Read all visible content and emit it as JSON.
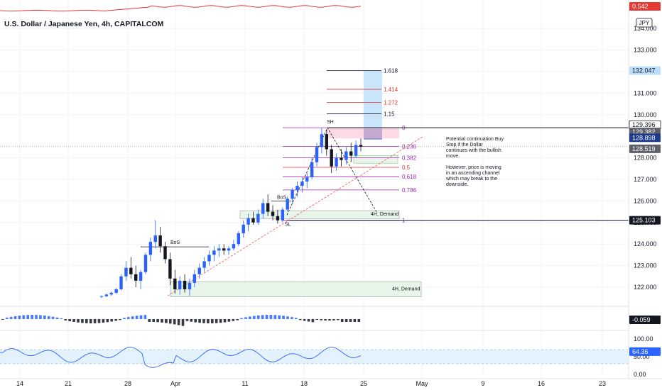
{
  "header": {
    "title": "U.S. Dollar / Japanese Yen, 4h, CAPITALCOM",
    "currency_badge": "JPY"
  },
  "annotation_note": {
    "para1": "Potential continuation Buy Stop  if the Dollar continues with the bullish move.",
    "para2": "However, price is moving in an ascending channel which may break to the downside."
  },
  "chart_data": {
    "type": "candlestick",
    "symbol": "U.S. Dollar / Japanese Yen",
    "timeframe": "4h",
    "source": "CAPITALCOM",
    "y_ticks": [
      122.0,
      123.0,
      124.0,
      125.0,
      126.0,
      127.0,
      128.0,
      130.0,
      131.0,
      132.0,
      133.0,
      134.0
    ],
    "y_tick_labels": [
      "122.000",
      "123.000",
      "124.000",
      "125.000",
      "126.000",
      "127.000",
      "128.000",
      "130.000",
      "131.000",
      "132.000",
      "133.000",
      "134.000"
    ],
    "ylim": [
      121.5,
      134.4
    ],
    "x_ticks": [
      "14",
      "21",
      "28",
      "Apr",
      "11",
      "18",
      "25",
      "May",
      "9",
      "16",
      "23"
    ],
    "candles": [
      [
        121.55,
        121.62,
        121.5,
        121.58
      ],
      [
        121.58,
        121.7,
        121.54,
        121.66
      ],
      [
        121.66,
        121.8,
        121.6,
        121.74
      ],
      [
        121.74,
        121.96,
        121.7,
        121.9
      ],
      [
        121.9,
        122.6,
        121.85,
        122.5
      ],
      [
        122.5,
        123.2,
        122.3,
        122.9
      ],
      [
        122.9,
        123.4,
        122.4,
        122.6
      ],
      [
        122.6,
        123.0,
        122.0,
        122.3
      ],
      [
        122.3,
        122.8,
        121.9,
        122.7
      ],
      [
        122.7,
        123.6,
        122.6,
        123.5
      ],
      [
        123.5,
        124.3,
        123.2,
        124.1
      ],
      [
        124.1,
        125.1,
        123.8,
        124.4
      ],
      [
        124.4,
        124.8,
        123.6,
        123.9
      ],
      [
        123.9,
        124.1,
        123.1,
        123.3
      ],
      [
        123.3,
        123.6,
        122.1,
        122.4
      ],
      [
        122.4,
        122.8,
        121.7,
        121.9
      ],
      [
        121.9,
        122.5,
        121.65,
        122.3
      ],
      [
        122.3,
        122.6,
        121.75,
        121.9
      ],
      [
        121.9,
        122.4,
        121.6,
        122.2
      ],
      [
        122.2,
        122.8,
        122.0,
        122.6
      ],
      [
        122.6,
        123.1,
        122.4,
        122.9
      ],
      [
        122.9,
        123.4,
        122.7,
        123.2
      ],
      [
        123.2,
        123.7,
        123.0,
        123.5
      ],
      [
        123.5,
        123.9,
        123.2,
        123.7
      ],
      [
        123.7,
        124.0,
        123.4,
        123.8
      ],
      [
        123.8,
        124.0,
        123.5,
        123.7
      ],
      [
        123.7,
        123.9,
        123.5,
        123.8
      ],
      [
        123.8,
        124.2,
        123.7,
        124.0
      ],
      [
        124.0,
        124.6,
        123.9,
        124.5
      ],
      [
        124.5,
        125.1,
        124.3,
        124.9
      ],
      [
        124.9,
        125.4,
        124.6,
        125.2
      ],
      [
        125.2,
        125.5,
        124.9,
        125.0
      ],
      [
        125.0,
        125.6,
        124.9,
        125.4
      ],
      [
        125.4,
        126.1,
        125.2,
        125.9
      ],
      [
        125.9,
        126.3,
        125.3,
        125.5
      ],
      [
        125.5,
        125.8,
        125.1,
        125.3
      ],
      [
        125.3,
        125.6,
        124.95,
        125.1
      ],
      [
        125.1,
        125.7,
        125.0,
        125.6
      ],
      [
        125.6,
        126.2,
        125.5,
        126.1
      ],
      [
        126.1,
        126.6,
        125.9,
        126.5
      ],
      [
        126.5,
        126.9,
        126.2,
        126.7
      ],
      [
        126.7,
        127.1,
        126.4,
        126.9
      ],
      [
        126.9,
        127.3,
        126.6,
        127.1
      ],
      [
        127.1,
        128.0,
        127.0,
        127.8
      ],
      [
        127.8,
        128.7,
        127.6,
        128.5
      ],
      [
        128.5,
        129.4,
        128.2,
        129.1
      ],
      [
        129.1,
        129.3,
        128.1,
        128.4
      ],
      [
        128.4,
        128.6,
        127.3,
        127.6
      ],
      [
        127.6,
        128.2,
        127.4,
        128.0
      ],
      [
        128.0,
        128.4,
        127.6,
        127.9
      ],
      [
        127.9,
        128.5,
        127.7,
        128.3
      ],
      [
        128.3,
        128.7,
        127.8,
        128.1
      ],
      [
        128.1,
        128.8,
        128.0,
        128.6
      ],
      [
        128.6,
        128.9,
        128.3,
        128.52
      ]
    ],
    "fibonacci": {
      "levels": [
        "0",
        "0.236",
        "0.382",
        "0.5",
        "0.618",
        "0.786",
        "1",
        "1.15",
        "1.272",
        "1.414",
        "1.618"
      ],
      "prices": [
        129.396,
        128.53,
        128.0,
        127.56,
        127.13,
        126.51,
        125.103,
        130.04,
        130.57,
        131.18,
        132.05
      ]
    },
    "horizontal_lines": [
      129.396,
      125.103
    ],
    "annotations": [
      "SH",
      "SL",
      "BoS",
      "BoS",
      "4H, Demand",
      "4H, Demand"
    ],
    "price_labels": {
      "top_indicator": "0.542",
      "target": "132.047",
      "resistance": "129.396",
      "level_1": "129.382",
      "level_2": "128.898",
      "current": "128.519",
      "support": "125.103",
      "macd": "-0.059",
      "rsi": "64.36"
    },
    "rsi_panel": {
      "ticks": [
        100.0,
        50.0,
        0.0
      ],
      "tick_labels": [
        "100.00",
        "50.00",
        "0.00"
      ]
    },
    "series_colors": {
      "up": "#2962ff",
      "down": "#131722",
      "resistance": "#131722",
      "top_indicator": "#e53935",
      "target": "#bbdefb",
      "level_2": "#1e3a8a",
      "current": "#5d606b",
      "rsi": "#2962ff"
    }
  }
}
